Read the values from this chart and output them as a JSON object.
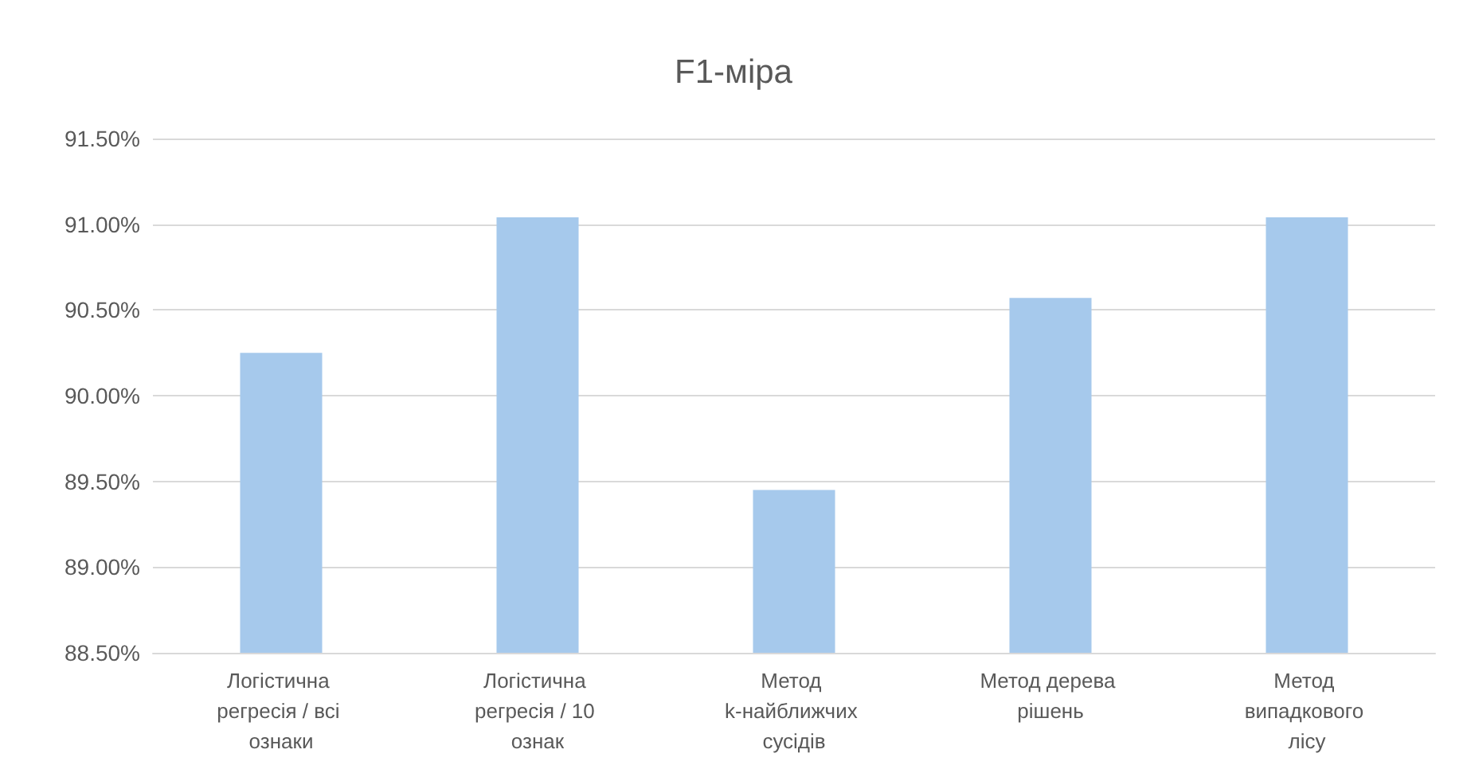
{
  "chart_data": {
    "type": "bar",
    "title": "F1-міра",
    "categories": [
      "Логістична регресія / всі ознаки",
      "Логістична регресія / 10 ознак",
      "Метод k-найближчих сусідів",
      "Метод дерева рішень",
      "Метод випадкового лісу"
    ],
    "values": [
      90.25,
      91.04,
      89.45,
      90.57,
      91.04
    ],
    "color": "#a6c9ec",
    "ylim": [
      88.5,
      91.5
    ],
    "yticks": [
      {
        "value": 88.5,
        "label": "88.50%"
      },
      {
        "value": 89,
        "label": "89.00%"
      },
      {
        "value": 89.5,
        "label": "89.50%"
      },
      {
        "value": 90,
        "label": "90.00%"
      },
      {
        "value": 90.5,
        "label": "90.50%"
      },
      {
        "value": 91,
        "label": "91.00%"
      },
      {
        "value": 91.5,
        "label": "91.50%"
      }
    ],
    "grid": "y"
  }
}
